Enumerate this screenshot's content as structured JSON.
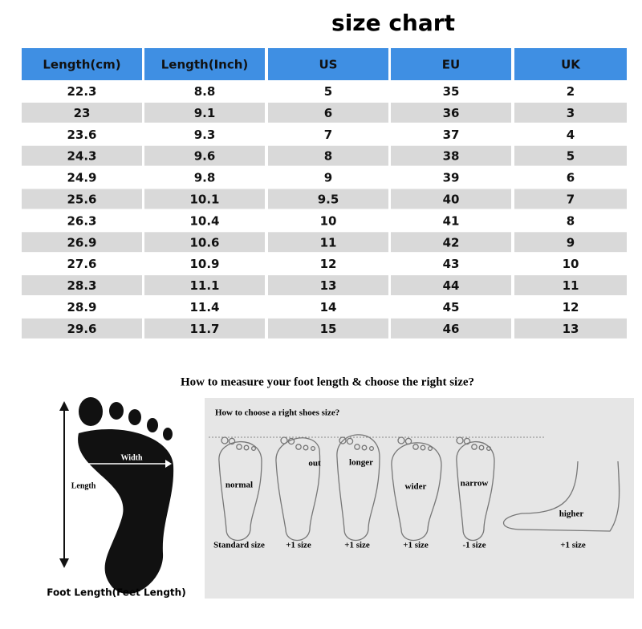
{
  "title": "size chart",
  "table": {
    "header": [
      "Length(cm)",
      "Length(Inch)",
      "US",
      "EU",
      "UK"
    ],
    "rows": [
      [
        "22.3",
        "8.8",
        "5",
        "35",
        "2"
      ],
      [
        "23",
        "9.1",
        "6",
        "36",
        "3"
      ],
      [
        "23.6",
        "9.3",
        "7",
        "37",
        "4"
      ],
      [
        "24.3",
        "9.6",
        "8",
        "38",
        "5"
      ],
      [
        "24.9",
        "9.8",
        "9",
        "39",
        "6"
      ],
      [
        "25.6",
        "10.1",
        "9.5",
        "40",
        "7"
      ],
      [
        "26.3",
        "10.4",
        "10",
        "41",
        "8"
      ],
      [
        "26.9",
        "10.6",
        "11",
        "42",
        "9"
      ],
      [
        "27.6",
        "10.9",
        "12",
        "43",
        "10"
      ],
      [
        "28.3",
        "11.1",
        "13",
        "44",
        "11"
      ],
      [
        "28.9",
        "11.4",
        "14",
        "45",
        "12"
      ],
      [
        "29.6",
        "11.7",
        "15",
        "46",
        "13"
      ]
    ]
  },
  "measure": {
    "heading": "How to measure your foot length & choose the right size?",
    "foot": {
      "width": "Width",
      "length": "Length",
      "caption": "Foot Length(Feet Length)"
    },
    "guide": {
      "title": "How to choose a right shoes size?",
      "feet": [
        {
          "label": "normal",
          "size": "Standard size"
        },
        {
          "label": "out",
          "size": "+1 size"
        },
        {
          "label": "longer",
          "size": "+1 size"
        },
        {
          "label": "wider",
          "size": "+1 size"
        },
        {
          "label": "narrow",
          "size": "-1 size"
        },
        {
          "label": "higher",
          "size": "+1 size"
        }
      ]
    }
  }
}
